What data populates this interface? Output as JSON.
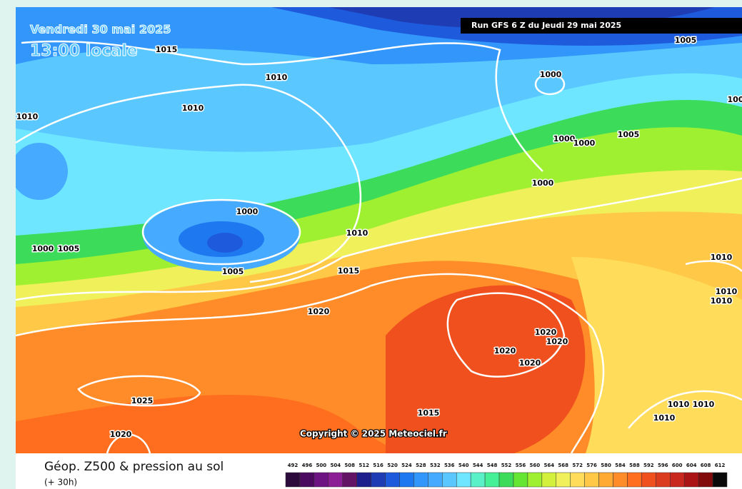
{
  "header": {
    "date": "Vendredi 30 mai 2025",
    "time": "13:00 locale",
    "run": "Run GFS 6 Z du Jeudi 29 mai 2025",
    "copyright": "Copyright © 2025 Meteociel.fr"
  },
  "isobars": [
    "1015",
    "1010",
    "1010",
    "1010",
    "1000",
    "1005",
    "1000",
    "1000",
    "1005",
    "1000",
    "1000",
    "1010",
    "1000",
    "1005",
    "1005",
    "1015",
    "1010",
    "1010",
    "1010",
    "1020",
    "1020",
    "1020",
    "1020",
    "1020",
    "1025",
    "1020",
    "1015",
    "1010",
    "1010",
    "1010",
    "100"
  ],
  "caption": {
    "title": "Géop. Z500 & pression au sol",
    "subtitle": "(+ 30h)"
  },
  "legend": {
    "values": [
      492,
      496,
      500,
      504,
      508,
      512,
      516,
      520,
      524,
      528,
      532,
      536,
      540,
      544,
      548,
      552,
      556,
      560,
      564,
      568,
      572,
      576,
      580,
      584,
      588,
      592,
      596,
      600,
      604,
      608,
      612
    ],
    "colors": [
      "#2d0a3c",
      "#4b0a5f",
      "#6e1482",
      "#8c1e96",
      "#641464",
      "#1e1e8c",
      "#1e3cb4",
      "#1e5adc",
      "#1e78f0",
      "#3296fa",
      "#46aaff",
      "#5ac8ff",
      "#6ee6ff",
      "#5af0c8",
      "#46f096",
      "#3cdc5a",
      "#64e632",
      "#a0f032",
      "#d2f03c",
      "#f0f05a",
      "#ffdc5a",
      "#ffc846",
      "#ffaa32",
      "#ff8c28",
      "#ff6e1e",
      "#f0501e",
      "#dc3c1e",
      "#c8281e",
      "#aa1414",
      "#820a0a",
      "#0a0a0a"
    ]
  }
}
